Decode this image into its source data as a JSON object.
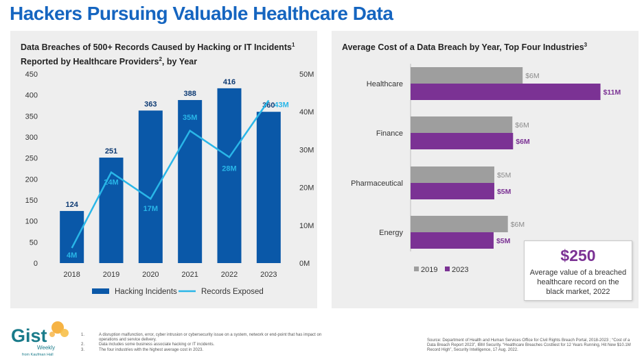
{
  "page_title": "Hackers Pursuing Valuable Healthcare Data",
  "left_panel": {
    "title_line1": "Data Breaches of 500+ Records Caused by Hacking or IT Incidents",
    "title_sup1": "1",
    "title_line2_a": "Reported by Healthcare Providers",
    "title_sup2": "2",
    "title_line2_b": ", by Year"
  },
  "right_panel": {
    "title": "Average Cost of a Data Breach by Year, Top Four Industries",
    "title_sup": "3"
  },
  "chart_data": [
    {
      "type": "bar",
      "title": "Data Breaches of 500+ Records Caused by Hacking or IT Incidents Reported by Healthcare Providers, by Year",
      "categories": [
        "2018",
        "2019",
        "2020",
        "2021",
        "2022",
        "2023"
      ],
      "series": [
        {
          "name": "Hacking Incidents",
          "type": "bar",
          "axis": "left",
          "color": "#0a58a8",
          "values": [
            124,
            251,
            363,
            388,
            416,
            360
          ],
          "labels": [
            "124",
            "251",
            "363",
            "388",
            "416",
            "360"
          ]
        },
        {
          "name": "Records Exposed",
          "type": "line",
          "axis": "right",
          "color": "#29b6e8",
          "values": [
            4,
            24,
            17,
            35,
            28,
            43
          ],
          "labels": [
            "4M",
            "24M",
            "17M",
            "35M",
            "28M",
            "43M"
          ]
        }
      ],
      "ylim": [
        0,
        450
      ],
      "yticks": [
        "0",
        "50",
        "100",
        "150",
        "200",
        "250",
        "300",
        "350",
        "400",
        "450"
      ],
      "y2lim": [
        0,
        50
      ],
      "y2ticks": [
        "0M",
        "10M",
        "20M",
        "30M",
        "40M",
        "50M"
      ],
      "legend": [
        "Hacking Incidents",
        "Records Exposed"
      ],
      "legend_position": "bottom"
    },
    {
      "type": "bar",
      "orientation": "horizontal",
      "title": "Average Cost of a Data Breach by Year, Top Four Industries",
      "categories": [
        "Healthcare",
        "Finance",
        "Pharmaceutical",
        "Energy"
      ],
      "series": [
        {
          "name": "2019",
          "color": "#9e9e9e",
          "label_color": "#8a8a8a",
          "values": [
            6.45,
            5.86,
            4.82,
            5.6
          ],
          "labels": [
            "$6M",
            "$6M",
            "$5M",
            "$6M"
          ]
        },
        {
          "name": "2023",
          "color": "#7b3294",
          "label_color": "#7b3294",
          "values": [
            10.93,
            5.9,
            4.82,
            4.78
          ],
          "labels": [
            "$11M",
            "$6M",
            "$5M",
            "$5M"
          ]
        }
      ],
      "xlim": [
        0,
        11.5
      ],
      "legend": [
        "2019",
        "2023"
      ],
      "legend_position": "bottom-left"
    }
  ],
  "callout": {
    "value": "$250",
    "description": "Average value of a breached healthcare record on the black market, 2022"
  },
  "logo": {
    "brand": "Gist",
    "sub1": "Weekly",
    "sub2": "from Kaufman Hall"
  },
  "footnotes": [
    {
      "num": "1.",
      "text": "A disruption malfunction, error, cyber intrusion or cybersecurity issue on a system, network or end-point that has impact on operations and service delivery."
    },
    {
      "num": "2.",
      "text": "Data includes some business associate hacking or IT incidents."
    },
    {
      "num": "3.",
      "text": "The four industries with the highest average cost in 2023."
    }
  ],
  "source": "Source: Department of Health and Human Services Office for Civil Rights Breach Portal, 2018-2023 ; “Cost of a Data Breach Report 2023”, IBM Security. “Healthcare Breaches Costliest for 12 Years Running, Hit New $10.1M Record High”, Security Intelligence, 17 Aug. 2022.",
  "colors": {
    "title_blue": "#1565c0",
    "bar_blue": "#0a58a8",
    "line_cyan": "#29b6e8",
    "gray_2019": "#9e9e9e",
    "purple_2023": "#7b3294",
    "logo_orange": "#f5a623",
    "logo_teal": "#1a7b8a"
  }
}
